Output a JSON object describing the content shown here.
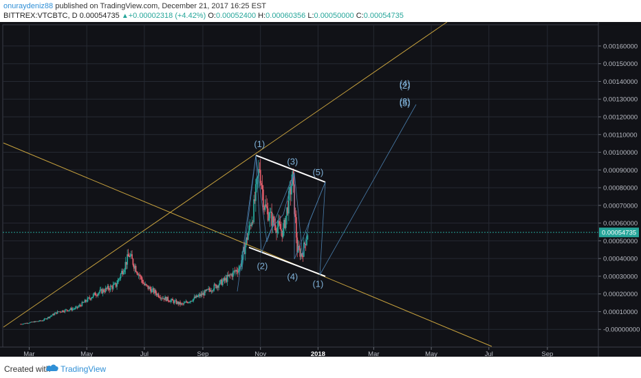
{
  "header": {
    "user": "onuraydeniz88",
    "published": "published on TradingView.com, December 21, 2017 16:25 EST",
    "symbol": "BITTREX:VTCBTC, D",
    "last": "0.00054735",
    "change_arrow": "▲",
    "change": "+0.00002318 (+4.42%)",
    "o_label": "O:",
    "o_value": "0.00052400",
    "h_label": "H:",
    "h_value": "0.00060356",
    "l_label": "L:",
    "l_value": "0.00050000",
    "c_label": "C:",
    "c_value": "0.00054735"
  },
  "footer": {
    "created_with": "Created with",
    "brand": "TradingView",
    "logo_icon": "tradingview-cloud-icon"
  },
  "colors": {
    "background": "#111217",
    "grid": "#262a33",
    "up": "#26a69a",
    "down": "#e35f6c",
    "trendline": "#c9a33e",
    "channel": "#ffffff",
    "wave": "#4a7fae",
    "wave_label": "#7fb1d8",
    "price_tag": "#26a69a"
  },
  "chart_data": {
    "type": "candlestick",
    "title": "",
    "x_tick_labels": [
      "Mar",
      "May",
      "Jul",
      "Sep",
      "Nov",
      "2018",
      "Mar",
      "May",
      "Jul",
      "Sep"
    ],
    "y_tick_labels": [
      "0.00160000",
      "0.00150000",
      "0.00140000",
      "0.00130000",
      "0.00120000",
      "0.00110000",
      "0.00100000",
      "0.00090000",
      "0.00080000",
      "0.00070000",
      "0.00060000",
      "0.00050000",
      "0.00040000",
      "0.00030000",
      "0.00020000",
      "0.00010000",
      "-0.00000000"
    ],
    "ylim": [
      -0.0001,
      0.00172
    ],
    "last_price": 0.00054735,
    "last_price_label": "0.00054735",
    "grid": true,
    "candles_approx": [
      {
        "date": "2017-02-20",
        "close": 3e-05
      },
      {
        "date": "2017-03-15",
        "close": 5e-05
      },
      {
        "date": "2017-04-01",
        "close": 0.0001
      },
      {
        "date": "2017-04-20",
        "close": 0.00012
      },
      {
        "date": "2017-05-10",
        "close": 0.0002
      },
      {
        "date": "2017-06-01",
        "close": 0.00025
      },
      {
        "date": "2017-06-15",
        "close": 0.00042
      },
      {
        "date": "2017-07-01",
        "close": 0.00025
      },
      {
        "date": "2017-07-20",
        "close": 0.00018
      },
      {
        "date": "2017-08-10",
        "close": 0.00014
      },
      {
        "date": "2017-09-01",
        "close": 0.0002
      },
      {
        "date": "2017-09-25",
        "close": 0.00028
      },
      {
        "date": "2017-10-10",
        "close": 0.00035
      },
      {
        "date": "2017-10-24",
        "close": 0.00065
      },
      {
        "date": "2017-10-31",
        "close": 0.00092
      },
      {
        "date": "2017-11-05",
        "close": 0.0007
      },
      {
        "date": "2017-11-15",
        "close": 0.0006
      },
      {
        "date": "2017-11-25",
        "close": 0.00055
      },
      {
        "date": "2017-12-05",
        "close": 0.00085
      },
      {
        "date": "2017-12-10",
        "close": 0.00045
      },
      {
        "date": "2017-12-15",
        "close": 0.00042
      },
      {
        "date": "2017-12-21",
        "close": 0.00054735
      }
    ],
    "wave_labels": [
      {
        "text": "(1)",
        "date": "2017-10-31",
        "price": 0.00103
      },
      {
        "text": "(2)",
        "date": "2017-11-03",
        "price": 0.00034
      },
      {
        "text": "(3)",
        "date": "2017-12-05",
        "price": 0.00093
      },
      {
        "text": "(4)",
        "date": "2017-12-05",
        "price": 0.00028
      },
      {
        "text": "(5)",
        "date": "2018-01-01",
        "price": 0.00087
      },
      {
        "text": "(1)",
        "date": "2018-01-01",
        "price": 0.00024
      },
      {
        "text": "(2)",
        "date": "2018-04-03",
        "price": 0.00136
      },
      {
        "text": "(3)",
        "date": "2018-04-03",
        "price": 0.00127
      },
      {
        "text": "(4)",
        "date": "2018-04-03",
        "price": 0.00137
      },
      {
        "text": "(5)",
        "date": "2018-04-03",
        "price": 0.00126
      }
    ]
  }
}
